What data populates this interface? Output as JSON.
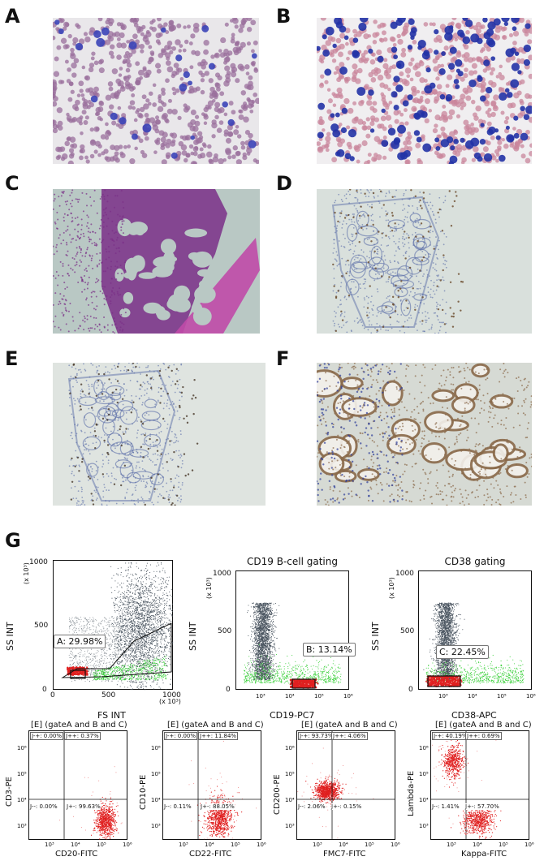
{
  "panels": {
    "A": "A",
    "B": "B",
    "C": "C",
    "D": "D",
    "E": "E",
    "F": "F",
    "G": "G"
  },
  "micrographs": {
    "A": {
      "bg": "#e9e7ea",
      "cell": "#9a6f9c",
      "accent": "#3b44b8"
    },
    "B": {
      "bg": "#f0eef0",
      "cell": "#c9869c",
      "accent": "#2232a6"
    },
    "C": {
      "bg": "#b9c8c4",
      "cell": "#7a2f88",
      "accent": "#c04aa8"
    },
    "D": {
      "bg": "#d9e0dc",
      "cell": "#5b6ea8",
      "accent": "#6a4a2a"
    },
    "E": {
      "bg": "#dfe4e0",
      "cell": "#5b6ea8",
      "accent": "#4a3a2a"
    },
    "F": {
      "bg": "#d6dad4",
      "cell": "#8a6a4a",
      "accent": "#2f3f9a"
    }
  },
  "colors": {
    "grey_events": "#4a5560",
    "green_events": "#39d039",
    "red_events": "#e02020"
  },
  "top_plots": [
    {
      "title": "",
      "xlabel": "FS INT",
      "ylabel": "SS INT",
      "yunit": "(x 10³)",
      "xunit": "(x 10³)",
      "gate": "A: 29.98%",
      "xticks": [
        "0",
        "500",
        "1000"
      ],
      "yticks": [
        "0",
        "500",
        "1000"
      ]
    },
    {
      "title": "CD19 B-cell gating",
      "xlabel": "CD19-PC7",
      "ylabel": "SS INT",
      "yunit": "(x 10³)",
      "gate": "B: 13.14%",
      "xticks": [
        "10³",
        "10⁴",
        "10⁵",
        "10⁶"
      ],
      "yticks": [
        "0",
        "500",
        "1000"
      ]
    },
    {
      "title": "CD38 gating",
      "xlabel": "CD38-APC",
      "ylabel": "SS INT",
      "yunit": "(x 10³)",
      "gate": "C: 22.45%",
      "xticks": [
        "10³",
        "10⁴",
        "10⁵",
        "10⁶"
      ],
      "yticks": [
        "0",
        "500",
        "1000"
      ]
    }
  ],
  "bottom_plots": [
    {
      "title": "[E] (gateA and B and C)",
      "xlabel": "CD20-FITC",
      "ylabel": "CD3-PE",
      "q_ul": "J-+: 0.00%",
      "q_ur": "J++: 0.37%",
      "q_ll": "J--: 0.00%",
      "q_lr": "J+-: 99.63%"
    },
    {
      "title": "[E] (gateA and B and C)",
      "xlabel": "CD22-FITC",
      "ylabel": "CD10-PE",
      "q_ul": "J-+: 0.00%",
      "q_ur": "J++: 11.84%",
      "q_ll": "J--: 0.11%",
      "q_lr": "J+-: 88.05%"
    },
    {
      "title": "[E] (gateA and B and C)",
      "xlabel": "FMC7-FITC",
      "ylabel": "CD200-PE",
      "q_ul": "J-+: 93.73%",
      "q_ur": "J++: 4.06%",
      "q_ll": "J--: 2.06%",
      "q_lr": "J+-: 0.15%"
    },
    {
      "title": "[E] (gateA and B and C)",
      "xlabel": "Kappa-FITC",
      "ylabel": "Lambda-PE",
      "q_ul": "J-+: 40.19%",
      "q_ur": "J++: 0.69%",
      "q_ll": "J--: 1.41%",
      "q_lr": "J+-: 57.70%"
    }
  ],
  "small_ticks": {
    "x": [
      "10³",
      "10⁴",
      "10⁵",
      "10⁶"
    ],
    "y": [
      "10³",
      "10⁴",
      "10⁵",
      "10⁶"
    ]
  }
}
